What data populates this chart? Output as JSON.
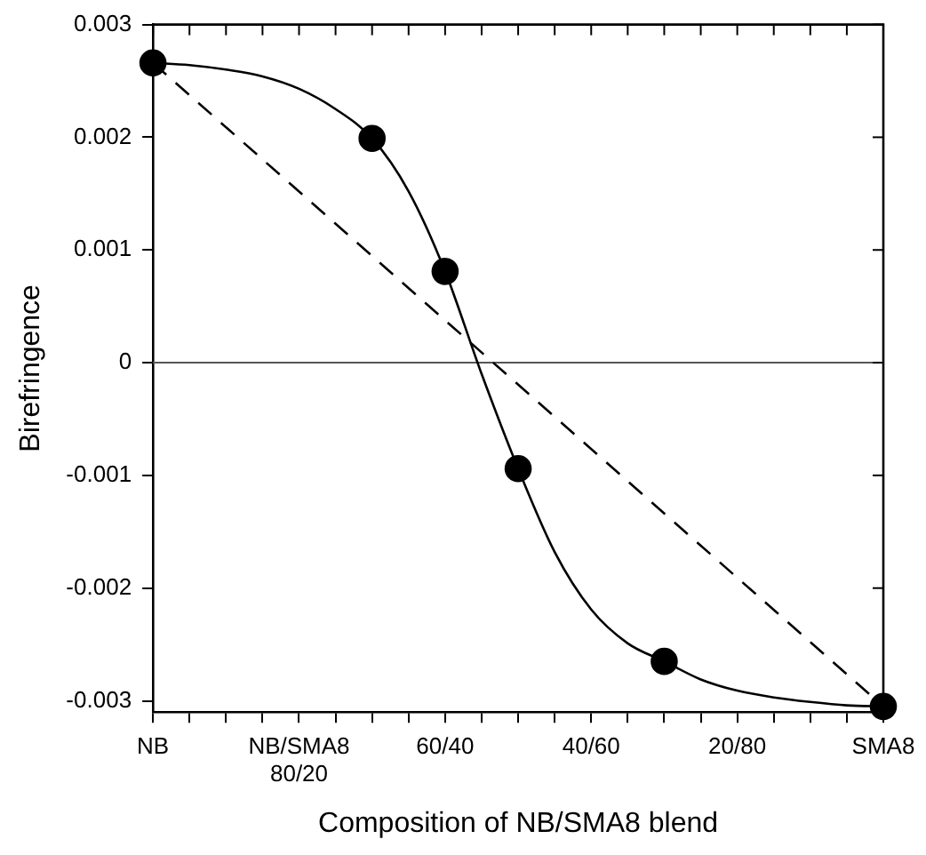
{
  "chart_data": {
    "type": "line",
    "xlabel": "Composition of NB/SMA8 blend",
    "ylabel": "Birefringence",
    "categories": [
      "NB",
      null,
      null,
      null,
      "NB/SMA8 80/20",
      null,
      null,
      null,
      "60/40",
      null,
      null,
      null,
      "40/60",
      null,
      null,
      null,
      "20/80",
      null,
      null,
      null,
      "SMA8"
    ],
    "ylim": [
      -0.0031,
      0.003
    ],
    "yticks": [
      -0.003,
      -0.002,
      -0.001,
      0,
      0.001,
      0.002,
      0.003
    ],
    "grid": false,
    "legend": false,
    "ref_lines": [
      {
        "axis": "y",
        "value": 0,
        "label": null,
        "color": "#555555",
        "line_style": "solid"
      }
    ],
    "series": [
      {
        "color": "#000000",
        "marker": "none",
        "line_style": "solid",
        "values": [
          0.00266,
          0.00264,
          0.0026,
          0.00254,
          0.00243,
          0.00225,
          0.00199,
          0.00152,
          0.00081,
          -0.0001,
          -0.00094,
          -0.00168,
          -0.00219,
          -0.00249,
          -0.00265,
          -0.00281,
          -0.00291,
          -0.00297,
          -0.00301,
          -0.00304,
          -0.00305
        ]
      },
      {
        "color": "#000000",
        "marker": "none",
        "line_style": "dashed",
        "values": [
          0.00266,
          null,
          null,
          null,
          null,
          null,
          null,
          null,
          null,
          null,
          null,
          null,
          null,
          null,
          null,
          null,
          null,
          null,
          null,
          null,
          -0.00305
        ]
      },
      {
        "type": "scatter",
        "color": "#000000",
        "marker": "circle",
        "values": [
          0.00266,
          null,
          null,
          null,
          null,
          null,
          0.00199,
          null,
          0.00081,
          null,
          -0.00094,
          null,
          null,
          null,
          -0.00265,
          null,
          null,
          null,
          null,
          null,
          -0.00305
        ]
      }
    ]
  }
}
